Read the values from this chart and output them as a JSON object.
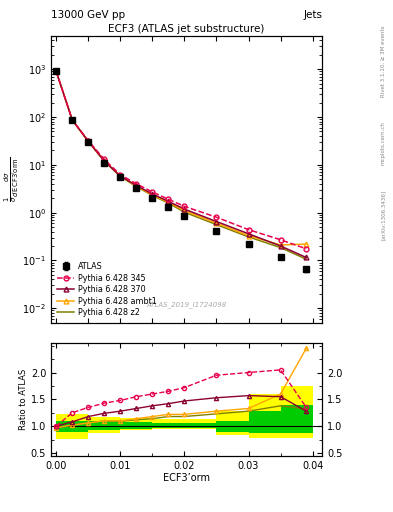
{
  "title_main": "ECF3 (ATLAS jet substructure)",
  "header_left": "13000 GeV pp",
  "header_right": "Jets",
  "xlabel": "ECF3’orm",
  "ylabel_ratio": "Ratio to ATLAS",
  "watermark": "ATLAS_2019_I1724098",
  "right_label1": "Rivet 3.1.10, ≥ 3M events",
  "right_label2": "mcplots.cern.ch",
  "right_label3": "[arXiv:1306.3436]",
  "x_atlas": [
    0.0,
    0.0025,
    0.005,
    0.0075,
    0.01,
    0.0125,
    0.015,
    0.0175,
    0.02,
    0.025,
    0.03,
    0.035,
    0.039
  ],
  "y_atlas": [
    900,
    85,
    30,
    11,
    5.5,
    3.2,
    2.0,
    1.3,
    0.85,
    0.42,
    0.22,
    0.12,
    0.065
  ],
  "y_atlas_err": [
    40,
    4,
    1.5,
    0.7,
    0.3,
    0.2,
    0.12,
    0.09,
    0.06,
    0.03,
    0.015,
    0.01,
    0.008
  ],
  "x_p345": [
    0.0,
    0.0025,
    0.005,
    0.0075,
    0.01,
    0.0125,
    0.015,
    0.0175,
    0.02,
    0.025,
    0.03,
    0.035,
    0.039
  ],
  "y_p345": [
    900,
    87,
    32,
    13,
    6.2,
    4.0,
    2.7,
    1.9,
    1.35,
    0.8,
    0.44,
    0.27,
    0.175
  ],
  "x_p370": [
    0.0,
    0.0025,
    0.005,
    0.0075,
    0.01,
    0.0125,
    0.015,
    0.0175,
    0.02,
    0.025,
    0.03,
    0.035,
    0.039
  ],
  "y_p370": [
    900,
    87,
    31,
    12,
    5.8,
    3.7,
    2.45,
    1.72,
    1.18,
    0.65,
    0.36,
    0.2,
    0.115
  ],
  "x_pambt1": [
    0.0,
    0.0025,
    0.005,
    0.0075,
    0.01,
    0.0125,
    0.015,
    0.0175,
    0.02,
    0.025,
    0.03,
    0.035,
    0.039
  ],
  "y_pambt1": [
    900,
    87,
    31,
    12,
    5.8,
    3.6,
    2.35,
    1.65,
    1.1,
    0.6,
    0.33,
    0.21,
    0.22
  ],
  "x_pz2": [
    0.0,
    0.0025,
    0.005,
    0.0075,
    0.01,
    0.0125,
    0.015,
    0.0175,
    0.02,
    0.025,
    0.03,
    0.035,
    0.039
  ],
  "y_pz2": [
    900,
    87,
    31,
    12,
    5.7,
    3.5,
    2.28,
    1.58,
    1.02,
    0.56,
    0.31,
    0.185,
    0.106
  ],
  "ratio_x": [
    0.0,
    0.0025,
    0.005,
    0.0075,
    0.01,
    0.0125,
    0.015,
    0.0175,
    0.02,
    0.025,
    0.03,
    0.035,
    0.039
  ],
  "ratio_p345": [
    1.0,
    1.25,
    1.35,
    1.43,
    1.48,
    1.55,
    1.6,
    1.65,
    1.72,
    1.95,
    2.0,
    2.05,
    1.35
  ],
  "ratio_p370": [
    1.0,
    1.08,
    1.18,
    1.24,
    1.28,
    1.33,
    1.38,
    1.42,
    1.47,
    1.53,
    1.57,
    1.55,
    1.28
  ],
  "ratio_pambt1": [
    0.97,
    1.02,
    1.06,
    1.1,
    1.1,
    1.14,
    1.18,
    1.22,
    1.22,
    1.28,
    1.33,
    1.6,
    2.45
  ],
  "ratio_pz2": [
    0.97,
    1.02,
    1.06,
    1.1,
    1.09,
    1.12,
    1.14,
    1.18,
    1.18,
    1.23,
    1.28,
    1.38,
    1.32
  ],
  "band_yellow_x": [
    0.0,
    0.005,
    0.01,
    0.015,
    0.02,
    0.025,
    0.03,
    0.035,
    0.04
  ],
  "band_yellow_lo": [
    0.76,
    0.88,
    0.92,
    0.94,
    0.95,
    0.84,
    0.78,
    0.78,
    0.74
  ],
  "band_yellow_hi": [
    1.22,
    1.18,
    1.16,
    1.14,
    1.14,
    1.28,
    1.6,
    1.75,
    1.88
  ],
  "band_green_x": [
    0.0,
    0.005,
    0.01,
    0.015,
    0.02,
    0.025,
    0.03,
    0.035,
    0.04
  ],
  "band_green_lo": [
    0.89,
    0.93,
    0.95,
    0.96,
    0.96,
    0.9,
    0.88,
    0.88,
    0.88
  ],
  "band_green_hi": [
    1.1,
    1.09,
    1.07,
    1.06,
    1.06,
    1.1,
    1.28,
    1.4,
    1.5
  ],
  "color_atlas": "#000000",
  "color_p345": "#e8004a",
  "color_p370": "#8b0032",
  "color_pambt1": "#ffa500",
  "color_pz2": "#808000",
  "color_band_yellow": "#ffff00",
  "color_band_green": "#00cc00",
  "legend_labels": [
    "ATLAS",
    "Pythia 6.428 345",
    "Pythia 6.428 370",
    "Pythia 6.428 ambt1",
    "Pythia 6.428 z2"
  ],
  "ylim_main": [
    0.005,
    5000
  ],
  "ylim_ratio": [
    0.45,
    2.55
  ],
  "xlim": [
    -0.0008,
    0.0415
  ]
}
